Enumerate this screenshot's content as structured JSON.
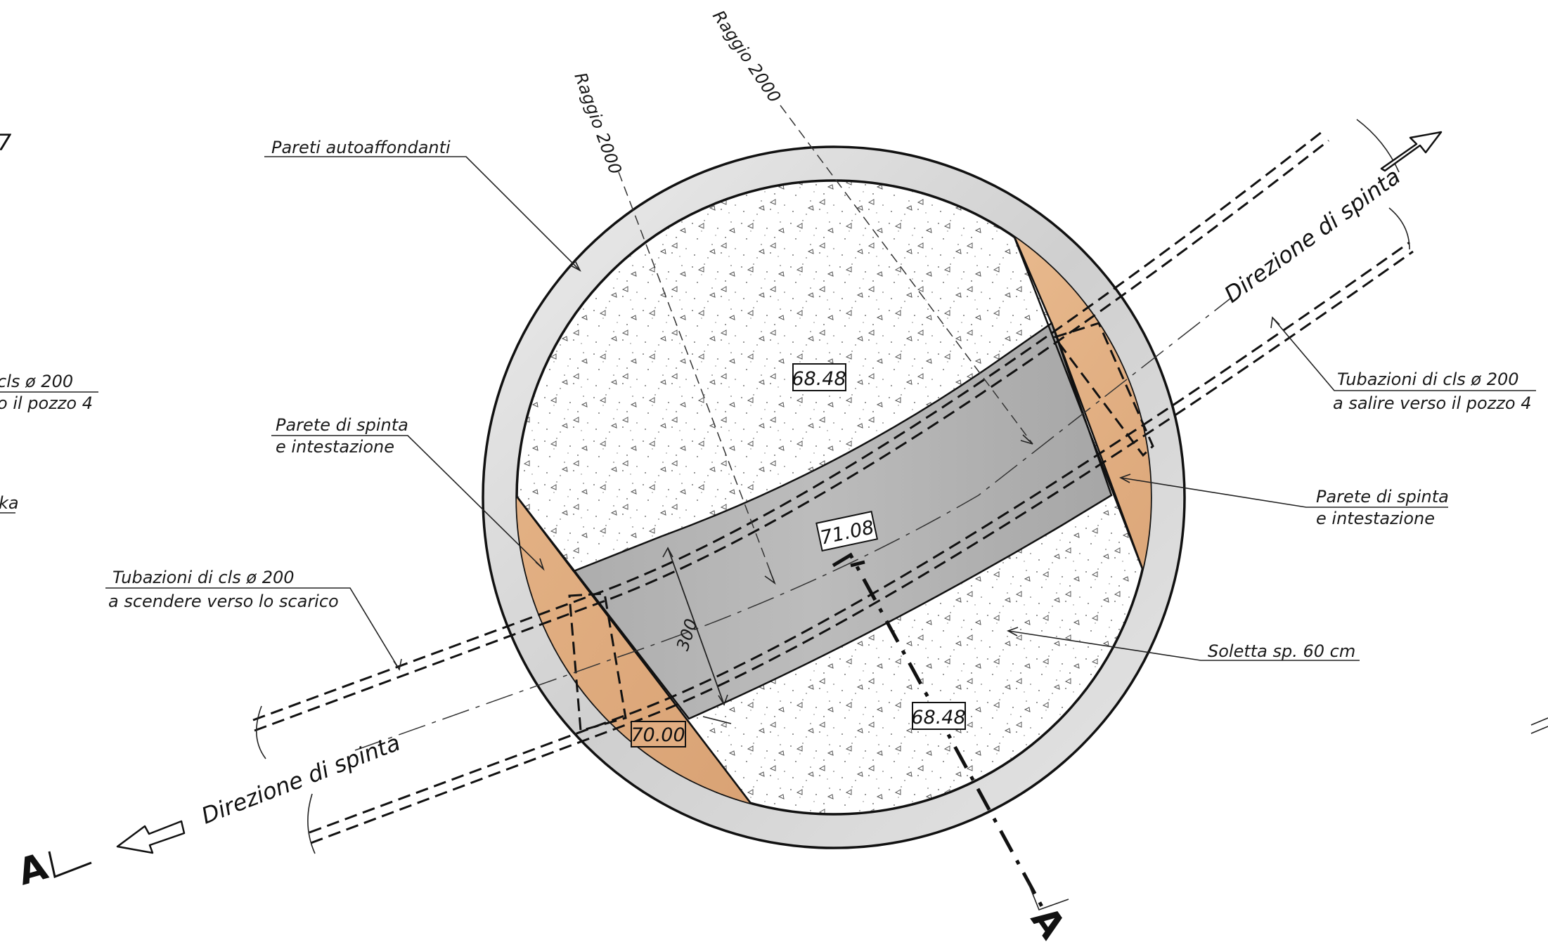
{
  "labels": {
    "pareti_autoaffondanti": "Pareti autoaffondanti",
    "raggio_1": "Raggio 2000",
    "raggio_2": "Raggio 2000",
    "parete_left_line1": "Parete di spinta",
    "parete_left_line2": "e intestazione",
    "parete_right_line1": "Parete di spinta",
    "parete_right_line2": "e intestazione",
    "tub_left_line1": "Tubazioni di cls ø 200",
    "tub_left_line2": "a scendere verso lo scarico",
    "tub_right_line1": "Tubazioni di cls ø 200",
    "tub_right_line2": "a salire verso il pozzo 4",
    "cut_left_line1": "cls ø 200",
    "cut_left_line2": "o il pozzo 4",
    "cut_left_frag": "ka",
    "soletta": "Soletta sp. 60 cm",
    "direzione_upper": "Direzione di spinta",
    "direzione_lower": "Direzione di spinta",
    "dim_300": "300",
    "section_mark_left": "A",
    "section_mark_bottom": "A",
    "corner_frag": "7"
  },
  "elevations": {
    "top": "68.48",
    "center": "71.08",
    "bottom_right": "68.48",
    "bottom_left": "70.00"
  },
  "colors": {
    "ring": "#d9d9d9",
    "slab": "#b3b3b3",
    "wall": "#e2ae82",
    "fill": "#ffffff"
  }
}
